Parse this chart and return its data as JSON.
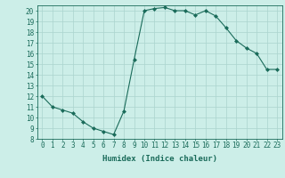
{
  "x": [
    0,
    1,
    2,
    3,
    4,
    5,
    6,
    7,
    8,
    9,
    10,
    11,
    12,
    13,
    14,
    15,
    16,
    17,
    18,
    19,
    20,
    21,
    22,
    23
  ],
  "y": [
    12,
    11,
    10.7,
    10.4,
    9.6,
    9.0,
    8.7,
    8.4,
    10.6,
    15.4,
    20.0,
    20.2,
    20.3,
    20.0,
    20.0,
    19.6,
    20.0,
    19.5,
    18.4,
    17.2,
    16.5,
    16.0,
    14.5,
    14.5
  ],
  "xlabel": "Humidex (Indice chaleur)",
  "xlim": [
    -0.5,
    23.5
  ],
  "ylim": [
    8,
    20.5
  ],
  "yticks": [
    8,
    9,
    10,
    11,
    12,
    13,
    14,
    15,
    16,
    17,
    18,
    19,
    20
  ],
  "xticks": [
    0,
    1,
    2,
    3,
    4,
    5,
    6,
    7,
    8,
    9,
    10,
    11,
    12,
    13,
    14,
    15,
    16,
    17,
    18,
    19,
    20,
    21,
    22,
    23
  ],
  "line_color": "#1a6b5a",
  "marker": "D",
  "marker_size": 2.0,
  "bg_color": "#cceee8",
  "grid_color": "#aad4ce",
  "tick_fontsize": 5.5,
  "xlabel_fontsize": 6.5,
  "linewidth": 0.8
}
